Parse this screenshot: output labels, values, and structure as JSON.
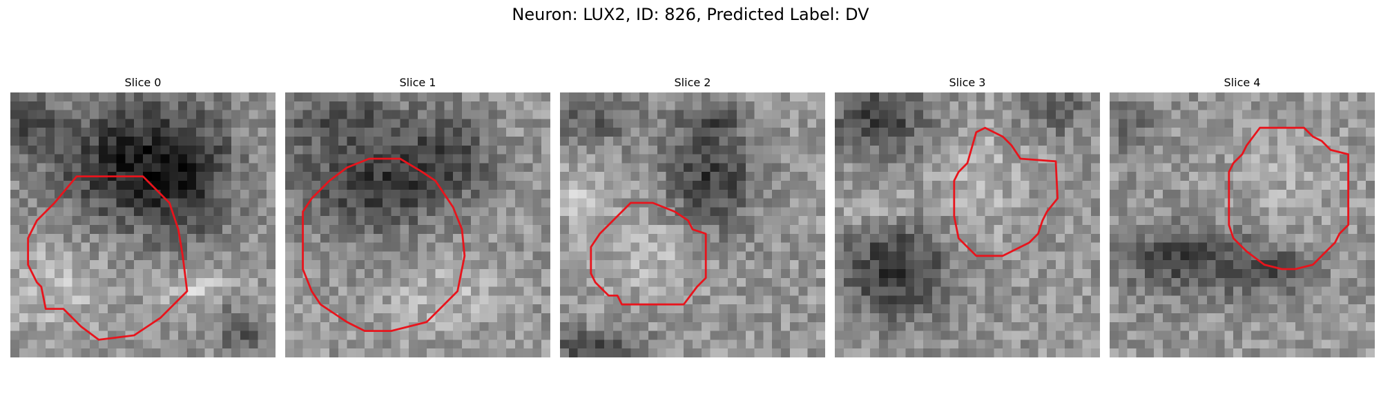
{
  "figure": {
    "title": "Neuron: LUX2, ID: 826, Predicted Label: DV",
    "colormap": "gray",
    "outline_color": "#e8141c"
  },
  "panels": [
    {
      "title": "Slice 0",
      "blobs": [
        {
          "cx": 12,
          "cy": 8,
          "rx": 8,
          "ry": 7,
          "amp": -95
        },
        {
          "cx": 20,
          "cy": 9,
          "rx": 6,
          "ry": 8,
          "amp": -85
        },
        {
          "cx": 2,
          "cy": 3,
          "rx": 3,
          "ry": 4,
          "amp": -70
        },
        {
          "cx": 5,
          "cy": 22,
          "rx": 5,
          "ry": 5,
          "amp": 40
        },
        {
          "cx": 21,
          "cy": 22,
          "rx": 5,
          "ry": 2,
          "amp": 55
        },
        {
          "cx": 26,
          "cy": 27,
          "rx": 3,
          "ry": 3,
          "amp": -60
        }
      ],
      "outline": [
        [
          7.5,
          9.5
        ],
        [
          15,
          9.5
        ],
        [
          18,
          12.5
        ],
        [
          19,
          15.5
        ],
        [
          19.5,
          18.5
        ],
        [
          20,
          22.5
        ],
        [
          17,
          25.5
        ],
        [
          14,
          27.5
        ],
        [
          10,
          28
        ],
        [
          8,
          26.5
        ],
        [
          6,
          24.5
        ],
        [
          4,
          24.5
        ],
        [
          3.5,
          22
        ],
        [
          3,
          21.5
        ],
        [
          2,
          19.5
        ],
        [
          2,
          16.5
        ],
        [
          3,
          14.5
        ],
        [
          5,
          12.5
        ]
      ]
    },
    {
      "title": "Slice 1",
      "blobs": [
        {
          "cx": 10,
          "cy": 10,
          "rx": 9,
          "ry": 6,
          "amp": -90
        },
        {
          "cx": 6,
          "cy": 3,
          "rx": 8,
          "ry": 3,
          "amp": -50
        },
        {
          "cx": 19,
          "cy": 7,
          "rx": 5,
          "ry": 5,
          "amp": -55
        },
        {
          "cx": 18,
          "cy": 23,
          "rx": 6,
          "ry": 4,
          "amp": 35
        }
      ],
      "outline": [
        [
          9.5,
          7.5
        ],
        [
          13,
          7.5
        ],
        [
          15.5,
          9
        ],
        [
          17,
          10
        ],
        [
          18,
          11.5
        ],
        [
          19,
          13
        ],
        [
          20,
          15.5
        ],
        [
          20.3,
          18.5
        ],
        [
          19.5,
          22.5
        ],
        [
          17,
          25
        ],
        [
          16,
          26
        ],
        [
          12,
          27
        ],
        [
          9,
          27
        ],
        [
          7,
          26
        ],
        [
          5.5,
          25
        ],
        [
          4,
          24
        ],
        [
          3,
          22.5
        ],
        [
          2,
          20
        ],
        [
          2,
          13.5
        ],
        [
          3,
          12
        ],
        [
          5,
          10
        ],
        [
          7,
          8.5
        ]
      ]
    },
    {
      "title": "Slice 2",
      "blobs": [
        {
          "cx": 17,
          "cy": 10,
          "rx": 5,
          "ry": 6,
          "amp": -90
        },
        {
          "cx": 4,
          "cy": 3,
          "rx": 5,
          "ry": 3,
          "amp": -55
        },
        {
          "cx": 17,
          "cy": 3,
          "rx": 4,
          "ry": 2,
          "amp": -50
        },
        {
          "cx": 10,
          "cy": 18,
          "rx": 6,
          "ry": 5,
          "amp": 35
        },
        {
          "cx": 2,
          "cy": 12,
          "rx": 3,
          "ry": 3,
          "amp": 45
        },
        {
          "cx": 4,
          "cy": 29,
          "rx": 6,
          "ry": 2,
          "amp": -80
        }
      ],
      "outline": [
        [
          8,
          12.5
        ],
        [
          10.5,
          12.5
        ],
        [
          13,
          13.5
        ],
        [
          14.5,
          14.5
        ],
        [
          15,
          15.5
        ],
        [
          16.5,
          16
        ],
        [
          16.5,
          21
        ],
        [
          15.5,
          22
        ],
        [
          14,
          24
        ],
        [
          7,
          24
        ],
        [
          6.5,
          23
        ],
        [
          5.5,
          23
        ],
        [
          5,
          22.5
        ],
        [
          4,
          21.5
        ],
        [
          3.5,
          20.5
        ],
        [
          3.5,
          17.5
        ],
        [
          4.5,
          16
        ],
        [
          5.5,
          15
        ]
      ]
    },
    {
      "title": "Slice 3",
      "blobs": [
        {
          "cx": 7,
          "cy": 20,
          "rx": 6,
          "ry": 6,
          "amp": -95
        },
        {
          "cx": 5,
          "cy": 3,
          "rx": 6,
          "ry": 4,
          "amp": -85
        },
        {
          "cx": 25,
          "cy": 2,
          "rx": 4,
          "ry": 3,
          "amp": -55
        },
        {
          "cx": 16,
          "cy": 10,
          "rx": 5,
          "ry": 7,
          "amp": 30
        },
        {
          "cx": 5,
          "cy": 13,
          "rx": 5,
          "ry": 2,
          "amp": 40
        }
      ],
      "outline": [
        [
          16,
          4.5
        ],
        [
          17,
          4
        ],
        [
          18,
          4.5
        ],
        [
          19,
          5
        ],
        [
          20,
          6
        ],
        [
          21,
          7.5
        ],
        [
          25,
          7.8
        ],
        [
          25.2,
          12
        ],
        [
          24,
          13.5
        ],
        [
          23.5,
          14.5
        ],
        [
          23,
          16
        ],
        [
          22,
          17
        ],
        [
          20,
          18
        ],
        [
          19,
          18.5
        ],
        [
          16,
          18.5
        ],
        [
          15,
          17.5
        ],
        [
          14,
          16.5
        ],
        [
          13.5,
          14
        ],
        [
          13.5,
          10
        ],
        [
          14,
          9
        ],
        [
          15,
          8
        ]
      ]
    },
    {
      "title": "Slice 4",
      "blobs": [
        {
          "cx": 8,
          "cy": 19,
          "rx": 7,
          "ry": 4,
          "amp": -80
        },
        {
          "cx": 2,
          "cy": 4,
          "rx": 3,
          "ry": 3,
          "amp": -55
        },
        {
          "cx": 18,
          "cy": 20,
          "rx": 5,
          "ry": 3,
          "amp": -65
        },
        {
          "cx": 20,
          "cy": 10,
          "rx": 6,
          "ry": 6,
          "amp": 20
        }
      ],
      "outline": [
        [
          17,
          4
        ],
        [
          18.5,
          4
        ],
        [
          22,
          4
        ],
        [
          23,
          5
        ],
        [
          24,
          5.5
        ],
        [
          25,
          6.5
        ],
        [
          27,
          7
        ],
        [
          27,
          15
        ],
        [
          26,
          16
        ],
        [
          25.5,
          17
        ],
        [
          24,
          18.5
        ],
        [
          23,
          19.5
        ],
        [
          21,
          20
        ],
        [
          19.5,
          20
        ],
        [
          17.5,
          19.5
        ],
        [
          15.5,
          18
        ],
        [
          14,
          16.5
        ],
        [
          13.5,
          15
        ],
        [
          13.5,
          9
        ],
        [
          14,
          8
        ],
        [
          15,
          7
        ],
        [
          15.5,
          6
        ]
      ]
    }
  ]
}
